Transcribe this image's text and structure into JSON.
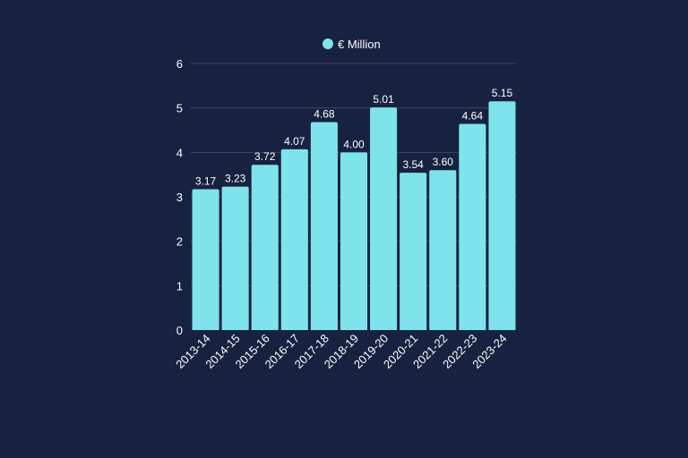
{
  "colors": {
    "background": "#162240",
    "bar": "#7EE3EA",
    "grid": "#3A4764",
    "text": "#FFFFFF"
  },
  "chart_data": {
    "type": "bar",
    "title": "",
    "xlabel": "",
    "ylabel": "",
    "legend": "top",
    "grid": true,
    "categories": [
      "2013-14",
      "2014-15",
      "2015-16",
      "2016-17",
      "2017-18",
      "2018-19",
      "2019-20",
      "2020-21",
      "2021-22",
      "2022-23",
      "2023-24"
    ],
    "series": [
      {
        "name": "€ Million",
        "values": [
          3.17,
          3.23,
          3.72,
          4.07,
          4.68,
          4.0,
          5.01,
          3.54,
          3.6,
          4.64,
          5.15
        ],
        "labels": [
          "3.17",
          "3.23",
          "3.72",
          "4.07",
          "4.68",
          "4.00",
          "5.01",
          "3.54",
          "3.60",
          "4.64",
          "5.15"
        ]
      }
    ],
    "ylim": [
      0,
      6
    ],
    "yticks": [
      0,
      1,
      2,
      3,
      4,
      5,
      6
    ]
  }
}
